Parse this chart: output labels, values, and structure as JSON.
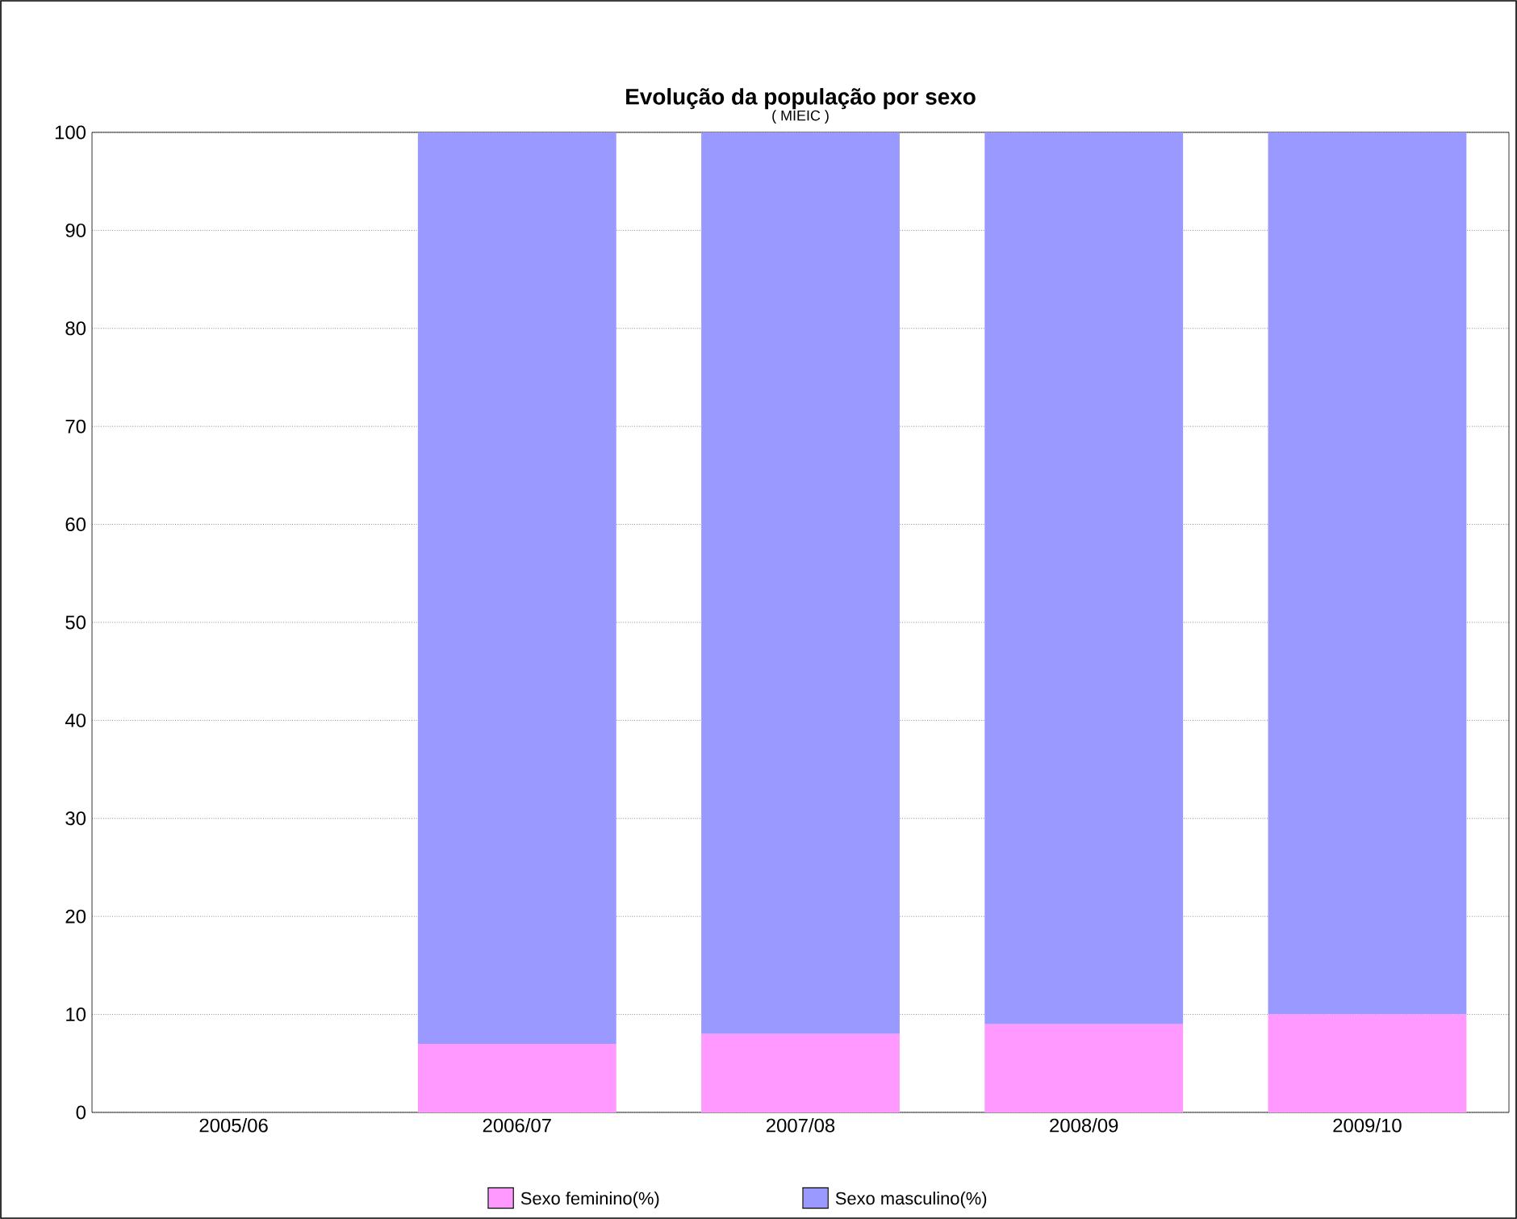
{
  "chart_data": {
    "type": "bar",
    "title": "Evolução da população por sexo",
    "subtitle": "( MIEIC )",
    "categories": [
      "2005/06",
      "2006/07",
      "2007/08",
      "2008/09",
      "2009/10"
    ],
    "stacked": true,
    "series": [
      {
        "name": "Sexo feminino(%)",
        "color": "#ff99ff",
        "values": [
          null,
          7,
          8,
          9,
          10
        ]
      },
      {
        "name": "Sexo masculino(%)",
        "color": "#9999ff",
        "values": [
          null,
          93,
          92,
          91,
          90
        ]
      }
    ],
    "ylim": [
      0,
      100
    ],
    "yticks": [
      0,
      10,
      20,
      30,
      40,
      50,
      60,
      70,
      80,
      90,
      100
    ],
    "grid": "y",
    "legend": "bottom"
  }
}
